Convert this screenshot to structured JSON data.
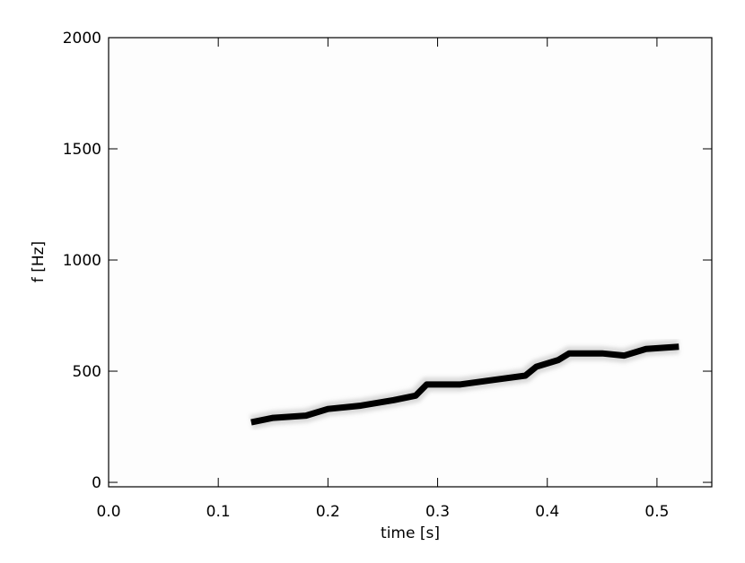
{
  "chart_data": {
    "type": "line",
    "x_label": "time [s]",
    "y_label": "f [Hz]",
    "x": [
      0.13,
      0.15,
      0.18,
      0.2,
      0.23,
      0.26,
      0.28,
      0.29,
      0.32,
      0.35,
      0.38,
      0.39,
      0.41,
      0.42,
      0.45,
      0.47,
      0.49,
      0.52
    ],
    "series": [
      {
        "color": "#000000",
        "values": [
          270,
          290,
          300,
          330,
          345,
          370,
          390,
          440,
          440,
          460,
          480,
          520,
          550,
          580,
          580,
          570,
          600,
          610
        ]
      }
    ],
    "xlim": [
      0,
      0.55
    ],
    "ylim": [
      -20,
      2000
    ],
    "xticks": [
      {
        "value": 0,
        "label": "0.0"
      },
      0.1,
      0.2,
      0.3,
      0.4,
      0.5
    ],
    "yticks": [
      0,
      500,
      1000,
      1500,
      2000
    ]
  }
}
